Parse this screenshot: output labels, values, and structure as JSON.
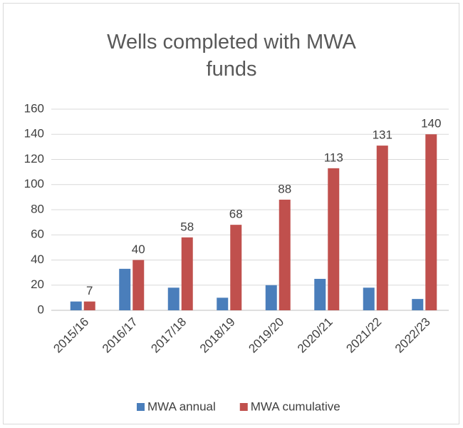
{
  "chart_data": {
    "type": "bar",
    "title": "Wells completed with MWA funds",
    "categories": [
      "2015/16",
      "2016/17",
      "2017/18",
      "2018/19",
      "2019/20",
      "2020/21",
      "2021/22",
      "2022/23"
    ],
    "series": [
      {
        "name": "MWA annual",
        "color": "#4a7ebb",
        "values": [
          7,
          33,
          18,
          10,
          20,
          25,
          18,
          9
        ]
      },
      {
        "name": "MWA cumulative",
        "color": "#c0504d",
        "values": [
          7,
          40,
          58,
          68,
          88,
          113,
          131,
          140
        ],
        "data_labels": true
      }
    ],
    "ylim": [
      0,
      160
    ],
    "yticks": [
      0,
      20,
      40,
      60,
      80,
      100,
      120,
      140,
      160
    ],
    "grid": true,
    "legend": "bottom"
  }
}
